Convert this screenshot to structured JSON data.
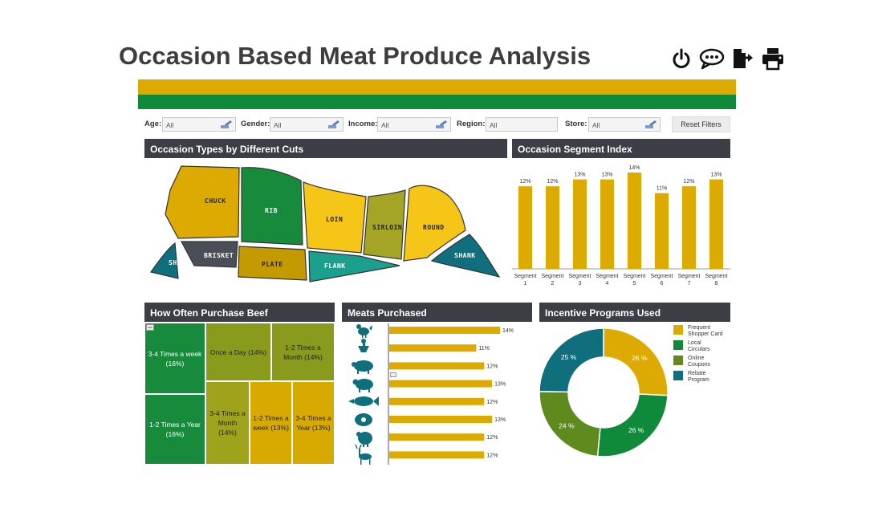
{
  "page": {
    "title": "Occasion Based Meat Produce Analysis"
  },
  "toolbar": {
    "icons": [
      "power-icon",
      "comment-icon",
      "export-icon",
      "print-icon"
    ]
  },
  "colors": {
    "gold": "#dcaa00",
    "green": "#0f8a3a",
    "teal": "#0f6f7c",
    "olive": "#5a8a1c",
    "dark_header": "#3b3e45"
  },
  "filters": {
    "age": {
      "label": "Age:",
      "value": "All"
    },
    "gender": {
      "label": "Gender:",
      "value": "All"
    },
    "income": {
      "label": "Income:",
      "value": "All"
    },
    "region": {
      "label": "Region:",
      "value": "All"
    },
    "store": {
      "label": "Store:",
      "value": "All"
    },
    "reset_label": "Reset Filters"
  },
  "cuts": {
    "title": "Occasion Types by Different Cuts",
    "labels": [
      "CHUCK",
      "RIB",
      "LOIN",
      "SIRLOIN",
      "ROUND",
      "SHANK",
      "BRISKET",
      "PLATE",
      "FLANK",
      "SHANK"
    ]
  },
  "segment_index": {
    "title": "Occasion Segment Index",
    "chart_data": {
      "type": "bar",
      "categories": [
        "Segment 1",
        "Segment 2",
        "Segment 3",
        "Segment 4",
        "Segment 5",
        "Segment 6",
        "Segment 7",
        "Segment 8"
      ],
      "values": [
        12,
        12,
        13,
        13,
        14,
        11,
        12,
        13
      ],
      "value_labels": [
        "12%",
        "12%",
        "13%",
        "13%",
        "14%",
        "11%",
        "12%",
        "13%"
      ],
      "tick_line1": [
        "Segment",
        "Segment",
        "Segment",
        "Segment",
        "Segment",
        "Segment",
        "Segment",
        "Segment"
      ],
      "tick_line2": [
        "1",
        "2",
        "3",
        "4",
        "5",
        "6",
        "7",
        "8"
      ]
    }
  },
  "purchase_freq": {
    "title": "How Often Purchase Beef",
    "cells": [
      {
        "label": "3-4 Times a week (16%)",
        "color": "#178a3c"
      },
      {
        "label": "1-2 Times a Year (16%)",
        "color": "#178a3c"
      },
      {
        "label": "Once a Day (14%)",
        "color": "#8a9a1c"
      },
      {
        "label": "1-2 Times a Month (14%)",
        "color": "#8a9a1c"
      },
      {
        "label": "3-4 Times a Month (14%)",
        "color": "#9fa31c"
      },
      {
        "label": "1-2 Times a week (13%)",
        "color": "#d8aa00"
      },
      {
        "label": "3-4 Times a Year (13%)",
        "color": "#d8aa00"
      }
    ]
  },
  "meats": {
    "title": "Meats Purchased",
    "chart_data": {
      "type": "bar",
      "categories": [
        "chicken",
        "duck",
        "pork",
        "lamb",
        "fish",
        "beef",
        "turkey",
        "venison"
      ],
      "values": [
        14,
        11,
        12,
        13,
        12,
        13,
        12,
        12
      ],
      "value_labels": [
        "14%",
        "11%",
        "12%",
        "13%",
        "12%",
        "13%",
        "12%",
        "12%"
      ]
    }
  },
  "incentives": {
    "title": "Incentive Programs Used",
    "chart_data": {
      "type": "pie",
      "categories": [
        "Frequent Shopper Card",
        "Local Circulars",
        "Online Coupons",
        "Rebate Program"
      ],
      "values": [
        26,
        26,
        24,
        25
      ],
      "value_labels": [
        "26 %",
        "26 %",
        "24 %",
        "25 %"
      ],
      "colors": [
        "#dcaa00",
        "#0f8a3a",
        "#5f8a1e",
        "#0f6f7c"
      ]
    },
    "legend": [
      {
        "line1": "Frequent",
        "line2": "Shopper Card"
      },
      {
        "line1": "Local",
        "line2": "Circulars"
      },
      {
        "line1": "Online",
        "line2": "Coupons"
      },
      {
        "line1": "Rebate",
        "line2": "Program"
      }
    ]
  }
}
